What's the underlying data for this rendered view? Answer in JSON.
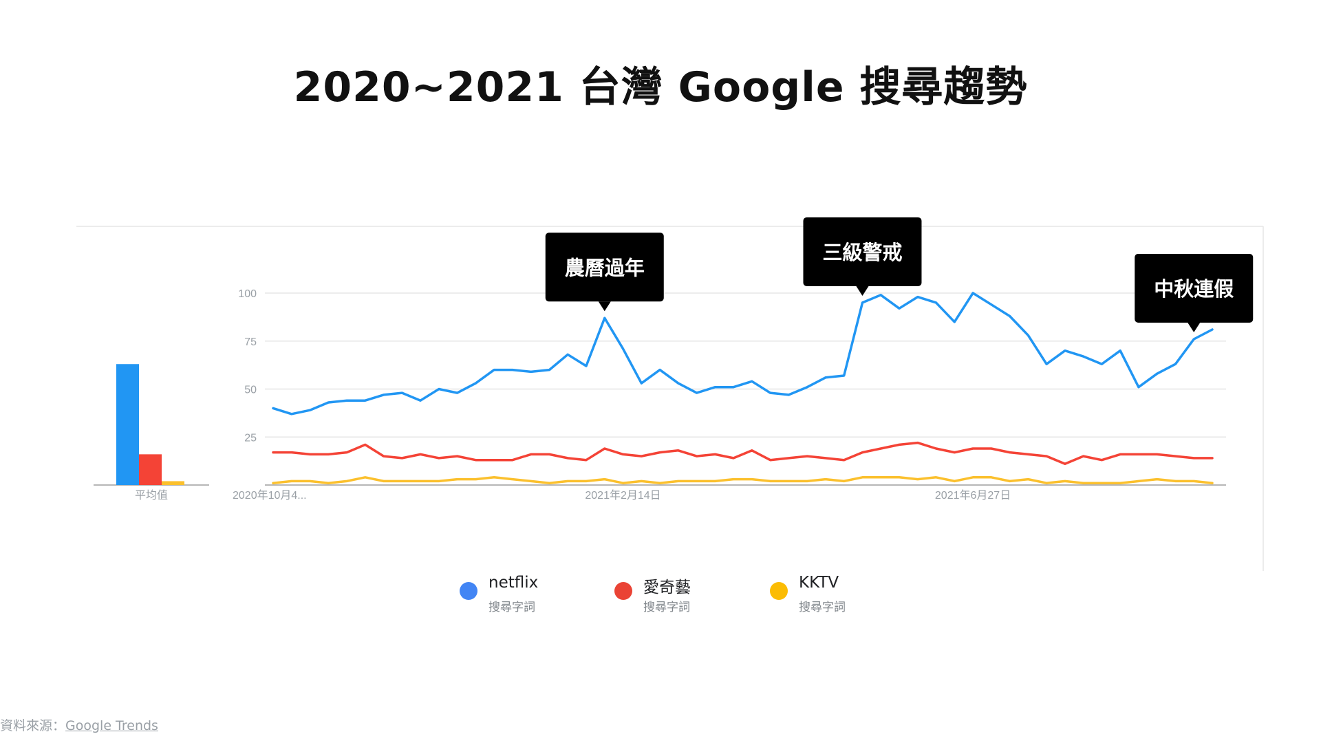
{
  "title": "2020~2021 台灣 Google 搜尋趨勢",
  "colors": {
    "netflix": "#2196F3",
    "iqiyi": "#F44336",
    "kktv": "#FBC02D",
    "callout_bg": "#000000",
    "grid": "#e6e6e6",
    "axis": "#9e9e9e"
  },
  "legend": [
    {
      "name": "netflix",
      "sub": "搜尋字詞",
      "color": "#4285F4"
    },
    {
      "name": "愛奇藝",
      "sub": "搜尋字詞",
      "color": "#EA4335"
    },
    {
      "name": "KKTV",
      "sub": "搜尋字詞",
      "color": "#FBBC04"
    }
  ],
  "source": {
    "label": "資料來源：",
    "link": "Google Trends"
  },
  "chart_data": [
    {
      "type": "bar",
      "categories": [
        "平均值"
      ],
      "xlabel": "平均值",
      "ylim": [
        0,
        100
      ],
      "series": [
        {
          "name": "netflix",
          "values": [
            63
          ]
        },
        {
          "name": "愛奇藝",
          "values": [
            16
          ]
        },
        {
          "name": "KKTV",
          "values": [
            2
          ]
        }
      ]
    },
    {
      "type": "line",
      "title": "2020~2021 台灣 Google 搜尋趨勢",
      "ylim": [
        0,
        100
      ],
      "yticks": [
        25,
        50,
        75,
        100
      ],
      "x_tick_labels": [
        {
          "index": 0,
          "label": "2020年10月4..."
        },
        {
          "index": 19,
          "label": "2021年2月14日"
        },
        {
          "index": 38,
          "label": "2021年6月27日"
        }
      ],
      "grid": true,
      "series": [
        {
          "name": "netflix",
          "values": [
            40,
            37,
            39,
            43,
            44,
            44,
            47,
            48,
            44,
            50,
            48,
            53,
            60,
            60,
            59,
            60,
            68,
            62,
            87,
            71,
            53,
            60,
            53,
            48,
            51,
            51,
            54,
            48,
            47,
            51,
            56,
            57,
            95,
            99,
            92,
            98,
            95,
            85,
            100,
            94,
            88,
            78,
            63,
            70,
            67,
            63,
            70,
            51,
            58,
            63,
            76,
            81
          ]
        },
        {
          "name": "愛奇藝",
          "values": [
            17,
            17,
            16,
            16,
            17,
            21,
            15,
            14,
            16,
            14,
            15,
            13,
            13,
            13,
            16,
            16,
            14,
            13,
            19,
            16,
            15,
            17,
            18,
            15,
            16,
            14,
            18,
            13,
            14,
            15,
            14,
            13,
            17,
            19,
            21,
            22,
            19,
            17,
            19,
            19,
            17,
            16,
            15,
            11,
            15,
            13,
            16,
            16,
            16,
            15,
            14,
            14
          ]
        },
        {
          "name": "KKTV",
          "values": [
            1,
            2,
            2,
            1,
            2,
            4,
            2,
            2,
            2,
            2,
            3,
            3,
            4,
            3,
            2,
            1,
            2,
            2,
            3,
            1,
            2,
            1,
            2,
            2,
            2,
            3,
            3,
            2,
            2,
            2,
            3,
            2,
            4,
            4,
            4,
            3,
            4,
            2,
            4,
            4,
            2,
            3,
            1,
            2,
            1,
            1,
            1,
            2,
            3,
            2,
            2,
            1
          ]
        }
      ],
      "annotations": [
        {
          "text": "農曆過年",
          "index": 18
        },
        {
          "text": "三級警戒",
          "index": 32
        },
        {
          "text": "中秋連假",
          "index": 50
        }
      ]
    }
  ]
}
